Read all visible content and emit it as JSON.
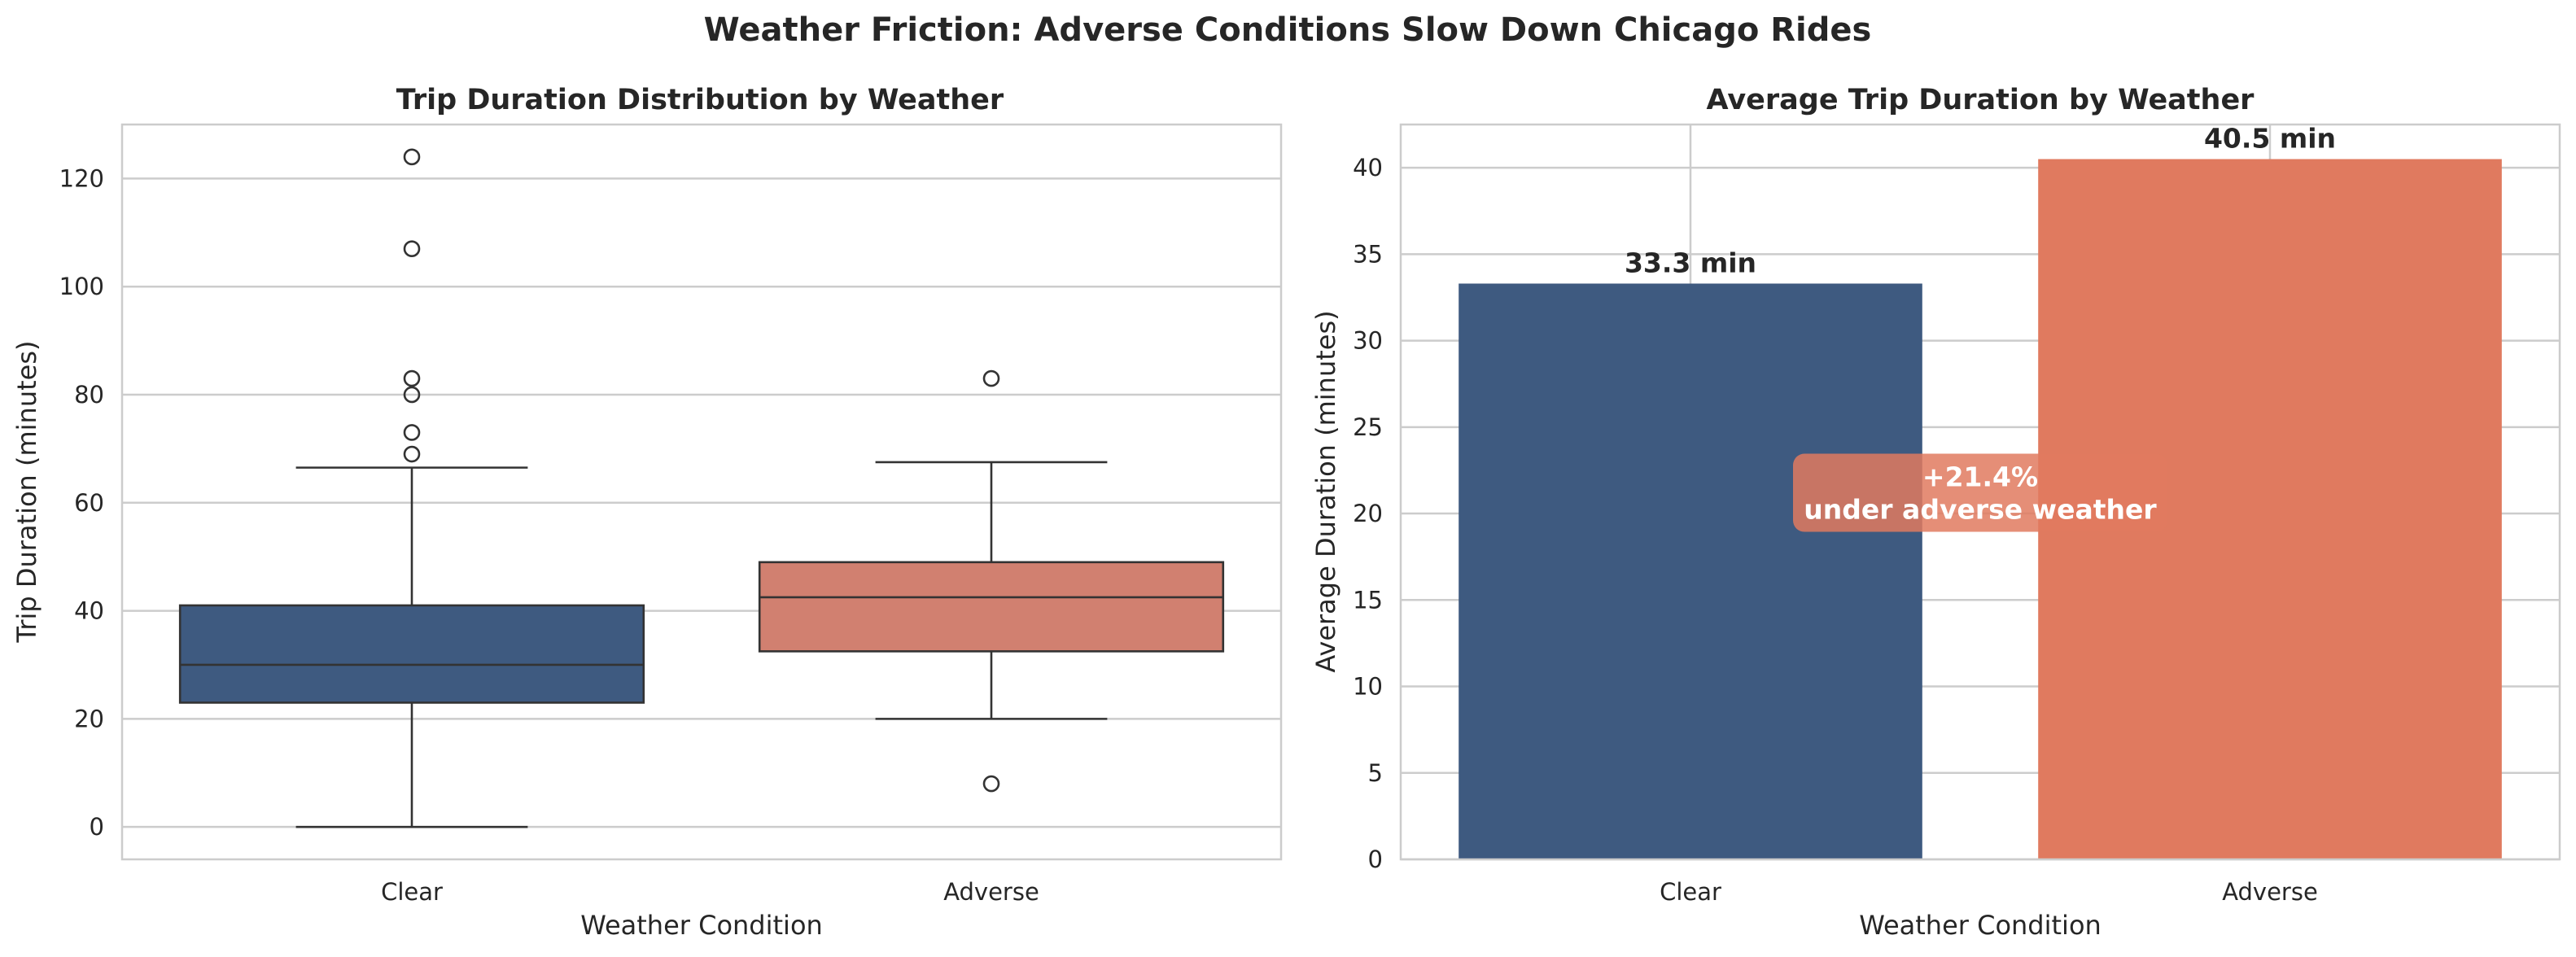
{
  "figure": {
    "title": "Weather Friction: Adverse Conditions Slow Down Chicago Rides"
  },
  "chart_data": [
    {
      "type": "box",
      "title": "Trip Duration Distribution by Weather",
      "xlabel": "Weather Condition",
      "ylabel": "Trip Duration (minutes)",
      "ylim": [
        -6,
        130
      ],
      "yticks": [
        0,
        20,
        40,
        60,
        80,
        100,
        120
      ],
      "grid": true,
      "categories": [
        "Clear",
        "Adverse"
      ],
      "colors": [
        "#3e5a80",
        "#d18070"
      ],
      "boxes": [
        {
          "category": "Clear",
          "whisker_low": 0,
          "q1": 23,
          "median": 30,
          "q3": 41,
          "whisker_high": 66.5,
          "outliers": [
            69,
            73,
            80,
            83,
            107,
            124
          ]
        },
        {
          "category": "Adverse",
          "whisker_low": 20,
          "q1": 32.5,
          "median": 42.5,
          "q3": 49,
          "whisker_high": 67.5,
          "outliers": [
            8,
            83
          ]
        }
      ]
    },
    {
      "type": "bar",
      "title": "Average Trip Duration by Weather",
      "xlabel": "Weather Condition",
      "ylabel": "Average Duration (minutes)",
      "ylim": [
        0,
        42.5
      ],
      "yticks": [
        0,
        5,
        10,
        15,
        20,
        25,
        30,
        35,
        40
      ],
      "grid": true,
      "categories": [
        "Clear",
        "Adverse"
      ],
      "values": [
        33.3,
        40.5
      ],
      "value_labels": [
        "33.3 min",
        "40.5 min"
      ],
      "colors": [
        "#3e5a80",
        "#e07a5f"
      ],
      "annotation": {
        "line1": "+21.4%",
        "line2": "under adverse weather",
        "y": 21.2,
        "box_color": "#e07a5f"
      }
    }
  ]
}
